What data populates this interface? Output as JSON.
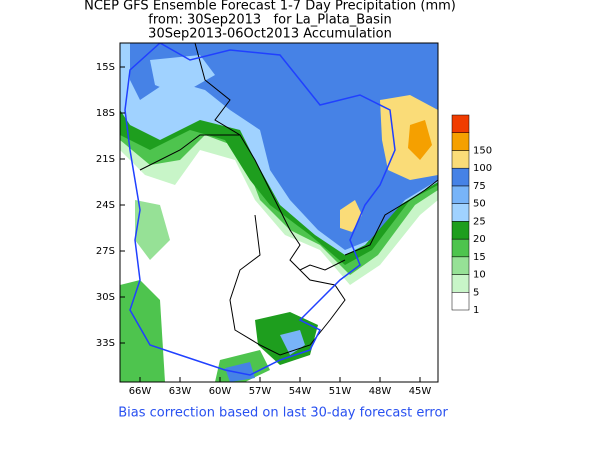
{
  "title": {
    "line1": "NCEP GFS Ensemble Forecast 1-7 Day Precipitation (mm)",
    "line2": "from: 30Sep2013   for La_Plata_Basin",
    "line3": "30Sep2013-06Oct2013 Accumulation"
  },
  "lat_labels": [
    "15S",
    "18S",
    "21S",
    "24S",
    "27S",
    "30S",
    "33S"
  ],
  "lon_labels": [
    "66W",
    "63W",
    "60W",
    "57W",
    "54W",
    "51W",
    "48W",
    "45W"
  ],
  "legend": {
    "levels": [
      1,
      5,
      10,
      15,
      20,
      25,
      50,
      75,
      100,
      150
    ],
    "colors": [
      "#ffffff",
      "#c8f5c8",
      "#96e196",
      "#4ec44e",
      "#1e9e1e",
      "#a0d2ff",
      "#78b4f8",
      "#4682e6",
      "#fadc78",
      "#f5a000",
      "#f03c00"
    ]
  },
  "footnote": "Bias correction based on last 30-day forecast error"
}
